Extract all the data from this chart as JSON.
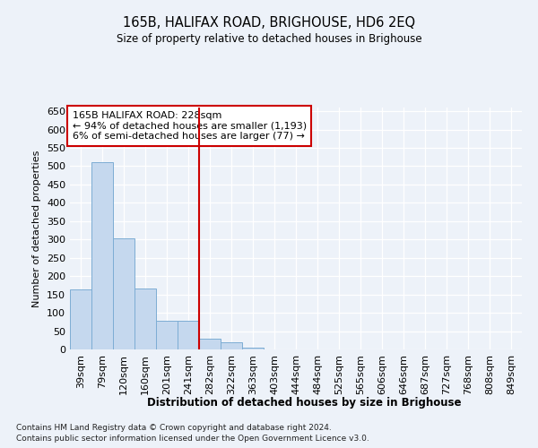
{
  "title": "165B, HALIFAX ROAD, BRIGHOUSE, HD6 2EQ",
  "subtitle": "Size of property relative to detached houses in Brighouse",
  "xlabel": "Distribution of detached houses by size in Brighouse",
  "ylabel": "Number of detached properties",
  "categories": [
    "39sqm",
    "79sqm",
    "120sqm",
    "160sqm",
    "201sqm",
    "241sqm",
    "282sqm",
    "322sqm",
    "363sqm",
    "403sqm",
    "444sqm",
    "484sqm",
    "525sqm",
    "565sqm",
    "606sqm",
    "646sqm",
    "687sqm",
    "727sqm",
    "768sqm",
    "808sqm",
    "849sqm"
  ],
  "values": [
    165,
    510,
    302,
    167,
    78,
    78,
    30,
    20,
    5,
    1,
    0,
    0,
    0,
    1,
    0,
    0,
    0,
    0,
    0,
    0,
    1
  ],
  "bar_color": "#c5d8ee",
  "bar_edge_color": "#7dadd4",
  "vline_color": "#cc0000",
  "vline_x_idx": 5,
  "annotation_text": "165B HALIFAX ROAD: 228sqm\n← 94% of detached houses are smaller (1,193)\n6% of semi-detached houses are larger (77) →",
  "annotation_box_color": "#ffffff",
  "annotation_box_edge": "#cc0000",
  "ylim": [
    0,
    660
  ],
  "yticks": [
    0,
    50,
    100,
    150,
    200,
    250,
    300,
    350,
    400,
    450,
    500,
    550,
    600,
    650
  ],
  "footer_line1": "Contains HM Land Registry data © Crown copyright and database right 2024.",
  "footer_line2": "Contains public sector information licensed under the Open Government Licence v3.0.",
  "bg_color": "#edf2f9",
  "plot_bg_color": "#edf2f9"
}
